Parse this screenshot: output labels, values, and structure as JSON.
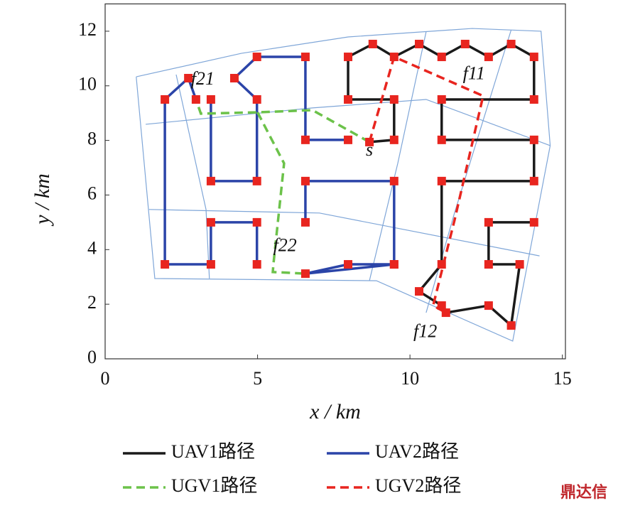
{
  "chart_data": {
    "type": "path",
    "xlabel": "x / km",
    "ylabel": "y / km",
    "xlim": [
      0,
      15.1
    ],
    "ylim": [
      0,
      13
    ],
    "xticks": [
      0,
      5,
      10,
      15
    ],
    "yticks": [
      0,
      2,
      4,
      6,
      8,
      10,
      12
    ],
    "marker_color": "#e8251f",
    "mesh": {
      "color": "#7fa6d8",
      "lines": [
        {
          "x": [
            1.02,
            4.47,
            7.97,
            12.04,
            14.3,
            14.6,
            13.37,
            8.9,
            1.63,
            1.02
          ],
          "y": [
            10.33,
            11.19,
            11.79,
            12.1,
            12.0,
            7.81,
            0.65,
            2.86,
            2.94,
            10.33
          ]
        },
        {
          "x": [
            1.44,
            7.03,
            14.25
          ],
          "y": [
            5.47,
            5.34,
            3.77
          ]
        },
        {
          "x": [
            1.33,
            6.8,
            10.53,
            14.6
          ],
          "y": [
            8.59,
            9.19,
            9.5,
            7.81
          ]
        },
        {
          "x": [
            2.33,
            3.31,
            3.42
          ],
          "y": [
            10.41,
            5.47,
            2.94
          ]
        },
        {
          "x": [
            10.53,
            9.6,
            8.67
          ],
          "y": [
            11.98,
            7.16,
            2.86
          ]
        },
        {
          "x": [
            13.32,
            11.46,
            10.53
          ],
          "y": [
            12.05,
            5.34,
            1.69
          ]
        }
      ]
    },
    "series": [
      {
        "name": "UAV1路径",
        "color": "#1a1a1a",
        "line_style": "solid",
        "markers": true,
        "x": [
          8.67,
          9.48,
          9.48,
          7.97,
          7.97,
          8.78,
          9.48,
          10.3,
          11.04,
          11.81,
          12.58,
          13.32,
          14.07,
          14.07,
          11.04,
          11.04,
          14.07,
          14.07,
          11.04,
          11.04,
          10.3,
          11.04,
          11.18,
          12.58,
          13.32,
          13.6,
          12.58,
          12.58,
          14.07
        ],
        "values": [
          7.94,
          8.02,
          9.5,
          9.5,
          11.06,
          11.53,
          11.06,
          11.53,
          11.06,
          11.53,
          11.06,
          11.53,
          11.06,
          9.5,
          9.5,
          8.02,
          8.02,
          6.51,
          6.51,
          3.46,
          2.47,
          1.95,
          1.69,
          1.95,
          1.22,
          3.46,
          3.46,
          5.0,
          5.0
        ]
      },
      {
        "name": "UAV2路径",
        "color": "#2b44a8",
        "line_style": "solid",
        "markers": true,
        "x": [
          2.98,
          2.73,
          1.96,
          1.96,
          3.47,
          3.47,
          4.98,
          4.98,
          null,
          3.47,
          3.47,
          4.98,
          4.98,
          4.24,
          4.98,
          6.57,
          6.57,
          7.97,
          null,
          6.57,
          6.57,
          9.48,
          9.48,
          6.57,
          7.97,
          9.48
        ],
        "values": [
          9.5,
          10.28,
          9.5,
          3.46,
          3.46,
          5.0,
          5.0,
          3.46,
          null,
          9.5,
          6.51,
          6.51,
          9.5,
          10.28,
          11.06,
          11.06,
          8.02,
          8.02,
          null,
          5.0,
          6.51,
          6.51,
          3.46,
          3.12,
          3.46,
          3.46
        ]
      },
      {
        "name": "UGV1路径",
        "color": "#6cc24a",
        "line_style": "dashed",
        "markers": false,
        "x": [
          8.67,
          6.8,
          5.0,
          3.14,
          2.98,
          null,
          5.0,
          5.87,
          5.52,
          5.5,
          6.57
        ],
        "values": [
          7.94,
          9.11,
          9.03,
          8.98,
          9.5,
          null,
          9.03,
          7.16,
          3.46,
          3.18,
          3.12
        ]
      },
      {
        "name": "UGV2路径",
        "color": "#e8251f",
        "line_style": "dashed",
        "markers": false,
        "x": [
          8.67,
          9.48,
          12.4,
          11.46,
          10.76,
          11.18
        ],
        "values": [
          7.94,
          11.06,
          9.63,
          5.07,
          1.95,
          1.69
        ]
      }
    ],
    "annotations": [
      {
        "text": "f21",
        "x": 3.2,
        "y": 10.2
      },
      {
        "text": "f11",
        "x": 12.1,
        "y": 10.4
      },
      {
        "text": "s",
        "x": 8.67,
        "y": 7.6
      },
      {
        "text": "f22",
        "x": 5.9,
        "y": 4.1
      },
      {
        "text": "f12",
        "x": 10.5,
        "y": 0.95
      }
    ],
    "watermark": "鼎达信"
  }
}
